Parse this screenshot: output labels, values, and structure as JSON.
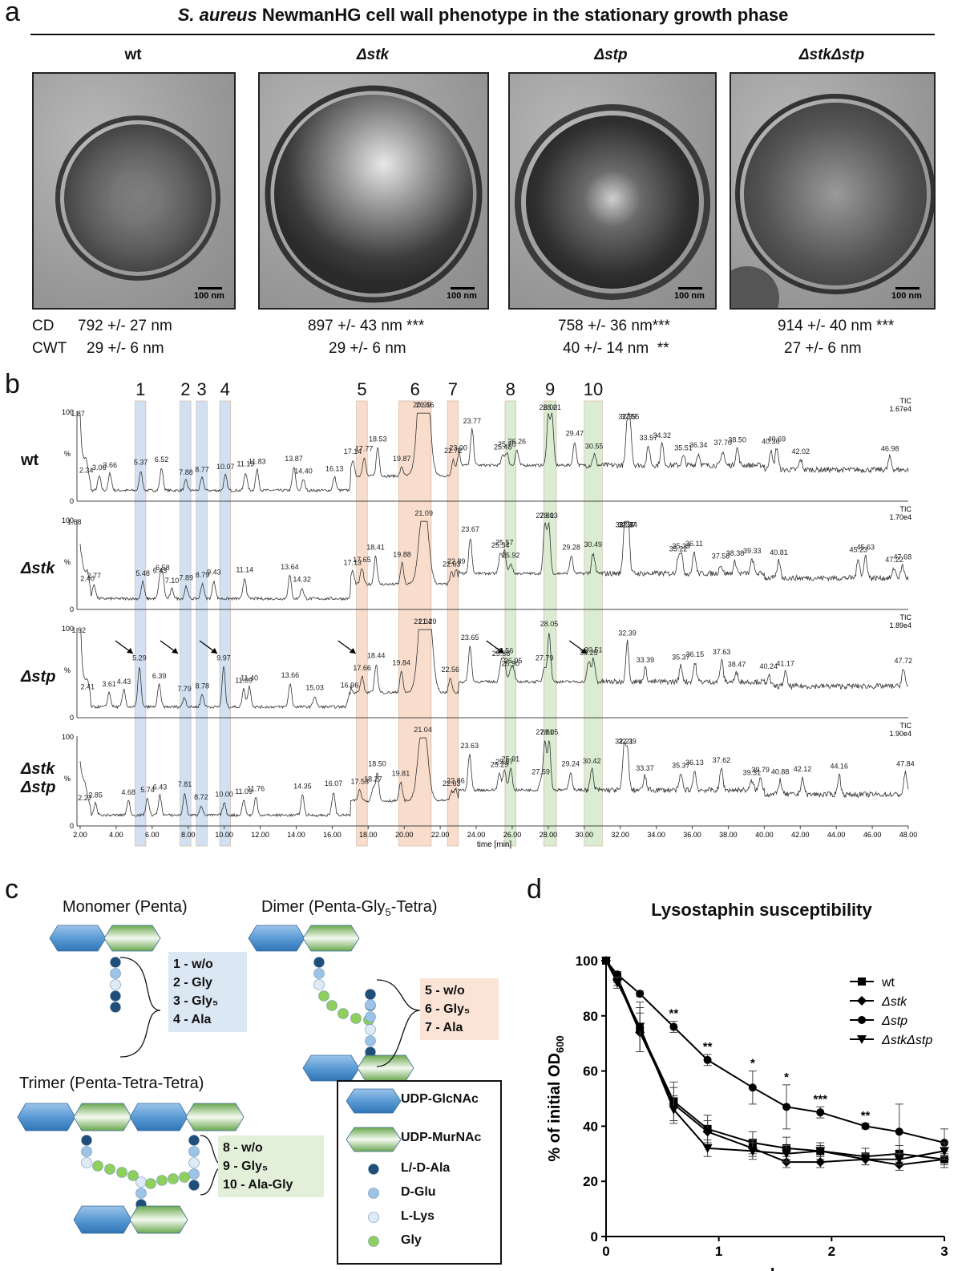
{
  "panels": {
    "a": "a",
    "b": "b",
    "c": "c",
    "d": "d"
  },
  "panel_a": {
    "title_italic": "S. aureus",
    "title_rest": " NewmanHG cell wall phenotype in the stationary growth phase",
    "strains": [
      "wt",
      "Δstk",
      "Δstp",
      "ΔstkΔstp"
    ],
    "scale_label": "100 nm",
    "row_labels": {
      "cd": "CD",
      "cwt": "CWT"
    },
    "cd": [
      "792 +/- 27 nm",
      "897 +/- 43 nm ***",
      "758 +/- 36 nm***",
      "914 +/- 40 nm ***"
    ],
    "cwt": [
      "29 +/- 6 nm",
      "29 +/- 6 nm",
      "40 +/- 14 nm  **",
      "27 +/- 6 nm"
    ]
  },
  "panel_b": {
    "peak_numbers": [
      "1",
      "2",
      "3",
      "4",
      "5",
      "6",
      "7",
      "8",
      "9",
      "10"
    ],
    "highlight_colors": {
      "blue": "#cfe0f3",
      "orange": "#f8dccb",
      "green": "#d9ecd0"
    },
    "rows": [
      {
        "label": "wt",
        "tic": "TIC",
        "tic_value": "1.67e4",
        "ytop": "100",
        "ymid": "%",
        "ybot": "0",
        "labels": [
          "1.87",
          "2.34",
          "3.06",
          "3.66",
          "5.37",
          "6.52",
          "7.88",
          "8.77",
          "10.07",
          "11.19",
          "11.83",
          "13.87",
          "14.40",
          "16.13",
          "17.14",
          "17.77",
          "18.53",
          "19.87",
          "20.99",
          "21.16",
          "22.72",
          "23.00",
          "23.77",
          "25.48",
          "25.70",
          "26.26",
          "28.00",
          "28.21",
          "29.47",
          "30.55",
          "32.39",
          "32.55",
          "33.57",
          "34.32",
          "35.51",
          "36.34",
          "37.70",
          "38.50",
          "40.36",
          "40.69",
          "42.02",
          "46.98"
        ]
      },
      {
        "label": "Δstk",
        "tic": "TIC",
        "tic_value": "1.70e4",
        "ytop": "100",
        "ymid": "%",
        "ybot": "0",
        "labels": [
          "1.68",
          "2.40",
          "2.77",
          "5.48",
          "6.43",
          "6.58",
          "7.10",
          "7.89",
          "8.79",
          "9.43",
          "11.14",
          "13.64",
          "14.32",
          "17.13",
          "17.65",
          "18.41",
          "19.88",
          "21.09",
          "22.63",
          "22.89",
          "23.67",
          "25.34",
          "25.57",
          "25.92",
          "27.81",
          "28.03",
          "29.28",
          "30.49",
          "32.23",
          "32.37",
          "32.44",
          "35.22",
          "35.39",
          "36.11",
          "37.58",
          "38.38",
          "39.33",
          "40.81",
          "45.23",
          "45.63",
          "47.22",
          "47.68"
        ]
      },
      {
        "label": "Δstp",
        "tic": "TIC",
        "tic_value": "1.89e4",
        "ytop": "100",
        "ymid": "%",
        "ybot": "0",
        "labels": [
          "1.92",
          "2.41",
          "3.61",
          "4.43",
          "5.29",
          "6.39",
          "7.79",
          "8.78",
          "9.97",
          "11.09",
          "11.40",
          "13.66",
          "15.03",
          "16.96",
          "17.66",
          "18.44",
          "19.84",
          "21.04",
          "21.29",
          "22.56",
          "23.65",
          "25.38",
          "25.56",
          "25.90",
          "26.05",
          "27.79",
          "28.05",
          "30.25",
          "30.51",
          "32.39",
          "33.39",
          "35.37",
          "36.15",
          "37.63",
          "38.47",
          "40.24",
          "41.17",
          "47.72"
        ]
      },
      {
        "label": "Δstk",
        "label2": "Δstp",
        "tic": "TIC",
        "tic_value": "1.90e4",
        "ytop": "100",
        "ymid": "%",
        "ybot": "0",
        "labels": [
          "2.27",
          "2.85",
          "4.68",
          "5.74",
          "6.43",
          "7.81",
          "8.72",
          "10.00",
          "11.09",
          "11.76",
          "14.35",
          "16.07",
          "17.53",
          "18.27",
          "18.50",
          "19.81",
          "21.04",
          "22.63",
          "22.86",
          "23.63",
          "25.29",
          "25.57",
          "25.91",
          "27.59",
          "27.81",
          "28.05",
          "29.24",
          "30.42",
          "32.21",
          "32.39",
          "33.37",
          "35.37",
          "36.13",
          "37.62",
          "39.31",
          "39.79",
          "40.88",
          "42.12",
          "44.16",
          "47.84"
        ]
      }
    ],
    "x_ticks": [
      "2.00",
      "4.00",
      "6.00",
      "8.00",
      "10.00",
      "12.00",
      "14.00",
      "16.00",
      "18.00",
      "20.00",
      "22.00",
      "24.00",
      "26.00",
      "28.00",
      "30.00",
      "32.00",
      "34.00",
      "36.00",
      "38.00",
      "40.00",
      "42.00",
      "44.00",
      "46.00",
      "48.00"
    ],
    "x_label": "time [min]"
  },
  "panel_c": {
    "monomer_title": "Monomer (Penta)",
    "dimer_title_a": "Dimer (Penta-Gly",
    "dimer_title_sub": "5",
    "dimer_title_b": "-Tetra)",
    "trimer_title": "Trimer (Penta-Tetra-Tetra)",
    "monomer_tags": [
      "1 - w/o",
      "2 - Gly",
      "3 - Gly₅",
      "4 - Ala"
    ],
    "dimer_tags": [
      "5 - w/o",
      "6 - Gly₅",
      "7 - Ala"
    ],
    "trimer_tags": [
      "8  - w/o",
      "9  - Gly₅",
      "10 - Ala-Gly"
    ],
    "legend": [
      "UDP-GlcNAc",
      "UDP-MurNAc",
      "L/-D-Ala",
      "D-Glu",
      "L-Lys",
      "Gly"
    ],
    "colors": {
      "glcnac": "#5b9bd5",
      "murnac": "#70ad47",
      "ala": "#1f4e79",
      "glu": "#9dc3e6",
      "lys": "#deebf7",
      "gly": "#8fcf5b"
    }
  },
  "panel_d": {
    "title": "Lysostaphin susceptibility"
  },
  "chart_data": {
    "type": "line",
    "title": "Lysostaphin susceptibility",
    "xlabel": "h",
    "ylabel": "% of initial OD600",
    "xlim": [
      0,
      3
    ],
    "ylim": [
      0,
      100
    ],
    "x_ticks": [
      "0",
      "1",
      "2",
      "3"
    ],
    "y_ticks": [
      "0",
      "20",
      "40",
      "60",
      "80",
      "100"
    ],
    "legend_position": "top-right",
    "significance": [
      {
        "x": 0.6,
        "label": "**"
      },
      {
        "x": 0.9,
        "label": "**"
      },
      {
        "x": 1.3,
        "label": "*"
      },
      {
        "x": 1.6,
        "label": "*"
      },
      {
        "x": 1.9,
        "label": "***"
      },
      {
        "x": 2.3,
        "label": "**"
      }
    ],
    "series": [
      {
        "name": "wt",
        "marker": "square",
        "x": [
          0,
          0.1,
          0.3,
          0.6,
          0.9,
          1.3,
          1.6,
          1.9,
          2.3,
          2.6,
          3.0
        ],
        "y": [
          100,
          94,
          75,
          49,
          39,
          34,
          32,
          31,
          29,
          30,
          28
        ],
        "err": [
          0,
          2,
          8,
          7,
          5,
          4,
          4,
          3,
          3,
          3,
          3
        ]
      },
      {
        "name": "Δstk",
        "marker": "diamond",
        "x": [
          0,
          0.1,
          0.3,
          0.6,
          0.9,
          1.3,
          1.6,
          1.9,
          2.3,
          2.6,
          3.0
        ],
        "y": [
          100,
          93,
          74,
          48,
          38,
          32,
          27,
          27,
          28,
          26,
          28
        ],
        "err": [
          0,
          2,
          7,
          6,
          4,
          3,
          2,
          2,
          2,
          2,
          2
        ]
      },
      {
        "name": "Δstp",
        "marker": "circle",
        "x": [
          0,
          0.1,
          0.3,
          0.6,
          0.9,
          1.3,
          1.6,
          1.9,
          2.3,
          2.6,
          3.0
        ],
        "y": [
          100,
          95,
          88,
          76,
          64,
          54,
          47,
          45,
          40,
          38,
          34
        ],
        "err": [
          0,
          1,
          1,
          2,
          2,
          6,
          8,
          2,
          1,
          10,
          5
        ]
      },
      {
        "name": "ΔstkΔstp",
        "marker": "triangle-down",
        "x": [
          0,
          0.1,
          0.3,
          0.6,
          0.9,
          1.3,
          1.6,
          1.9,
          2.3,
          2.6,
          3.0
        ],
        "y": [
          100,
          92,
          76,
          46,
          32,
          31,
          30,
          31,
          28,
          28,
          31
        ],
        "err": [
          0,
          2,
          9,
          5,
          3,
          3,
          3,
          2,
          2,
          2,
          3
        ]
      }
    ]
  }
}
